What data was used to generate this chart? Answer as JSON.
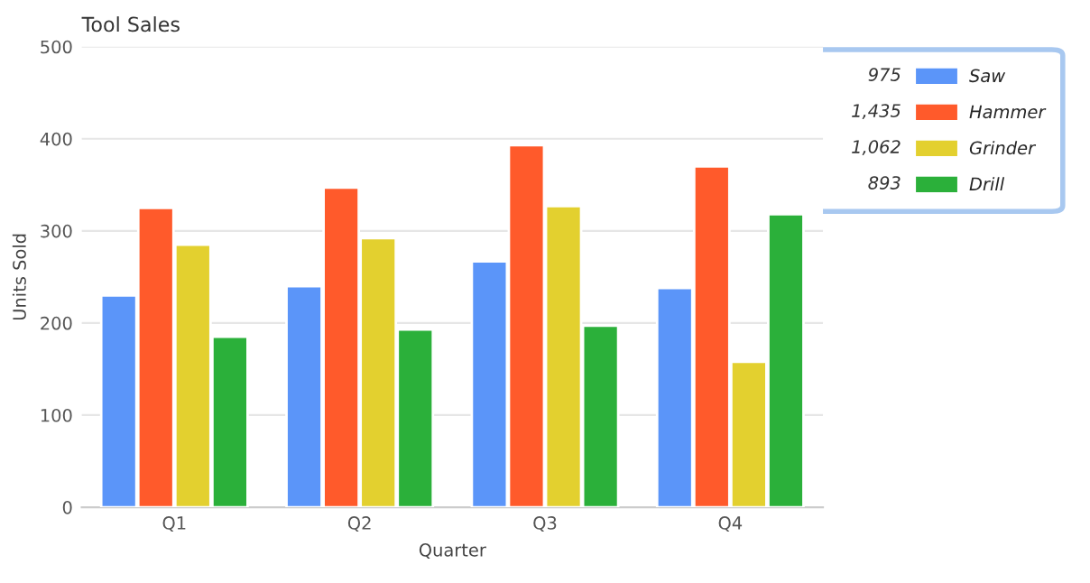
{
  "chart_data": {
    "type": "bar",
    "title": "Tool Sales",
    "xlabel": "Quarter",
    "ylabel": "Units Sold",
    "categories": [
      "Q1",
      "Q2",
      "Q3",
      "Q4"
    ],
    "series": [
      {
        "name": "Saw",
        "color": "#5b95f9",
        "values": [
          230,
          240,
          267,
          238
        ]
      },
      {
        "name": "Hammer",
        "color": "#ff5a2b",
        "values": [
          325,
          347,
          393,
          370
        ]
      },
      {
        "name": "Grinder",
        "color": "#e3d02f",
        "values": [
          285,
          292,
          327,
          158
        ]
      },
      {
        "name": "Drill",
        "color": "#2bb03a",
        "values": [
          185,
          193,
          197,
          318
        ]
      }
    ],
    "annotations": [
      "975",
      "1,435",
      "1,062",
      "893"
    ],
    "ylim": [
      0,
      500
    ],
    "yticks": [
      0,
      100,
      200,
      300,
      400,
      500
    ],
    "grid": "y",
    "legend": "right"
  }
}
